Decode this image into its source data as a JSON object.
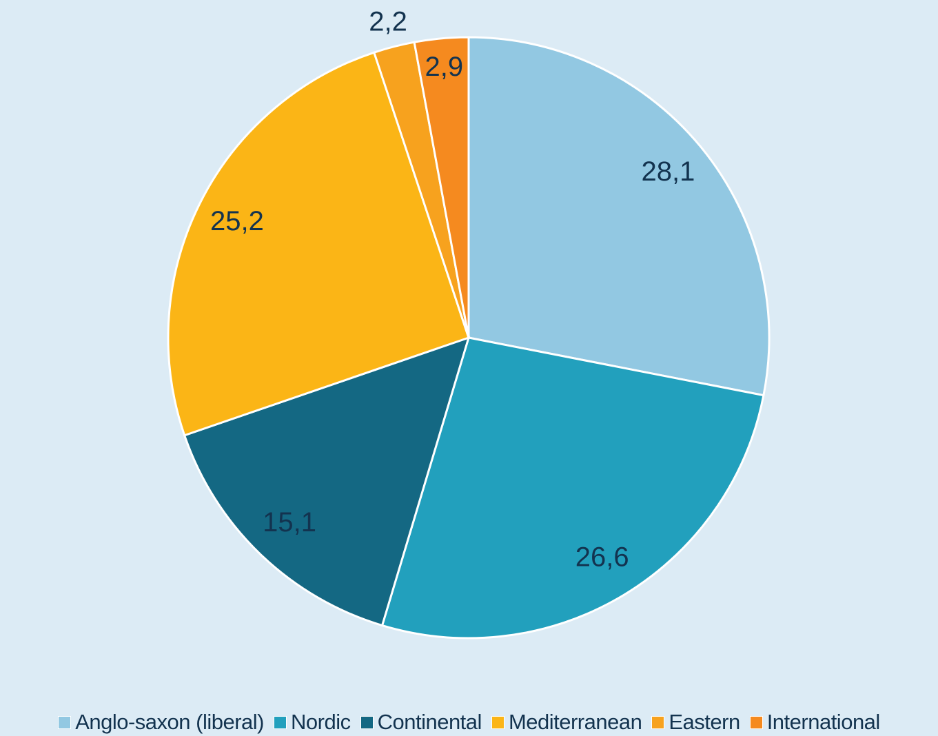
{
  "chart_data": {
    "type": "pie",
    "categories": [
      "Anglo-saxon (liberal)",
      "Nordic",
      "Continental",
      "Mediterranean",
      "Eastern",
      "International"
    ],
    "values": [
      28.1,
      26.6,
      15.1,
      25.2,
      2.2,
      2.9
    ],
    "value_labels": [
      "28,1",
      "26,6",
      "15,1",
      "25,2",
      "2,2",
      "2,9"
    ],
    "colors": [
      "#92c8e2",
      "#22a0bd",
      "#146883",
      "#fbb516",
      "#f7a21e",
      "#f58a1f"
    ],
    "legend": "bottom"
  }
}
